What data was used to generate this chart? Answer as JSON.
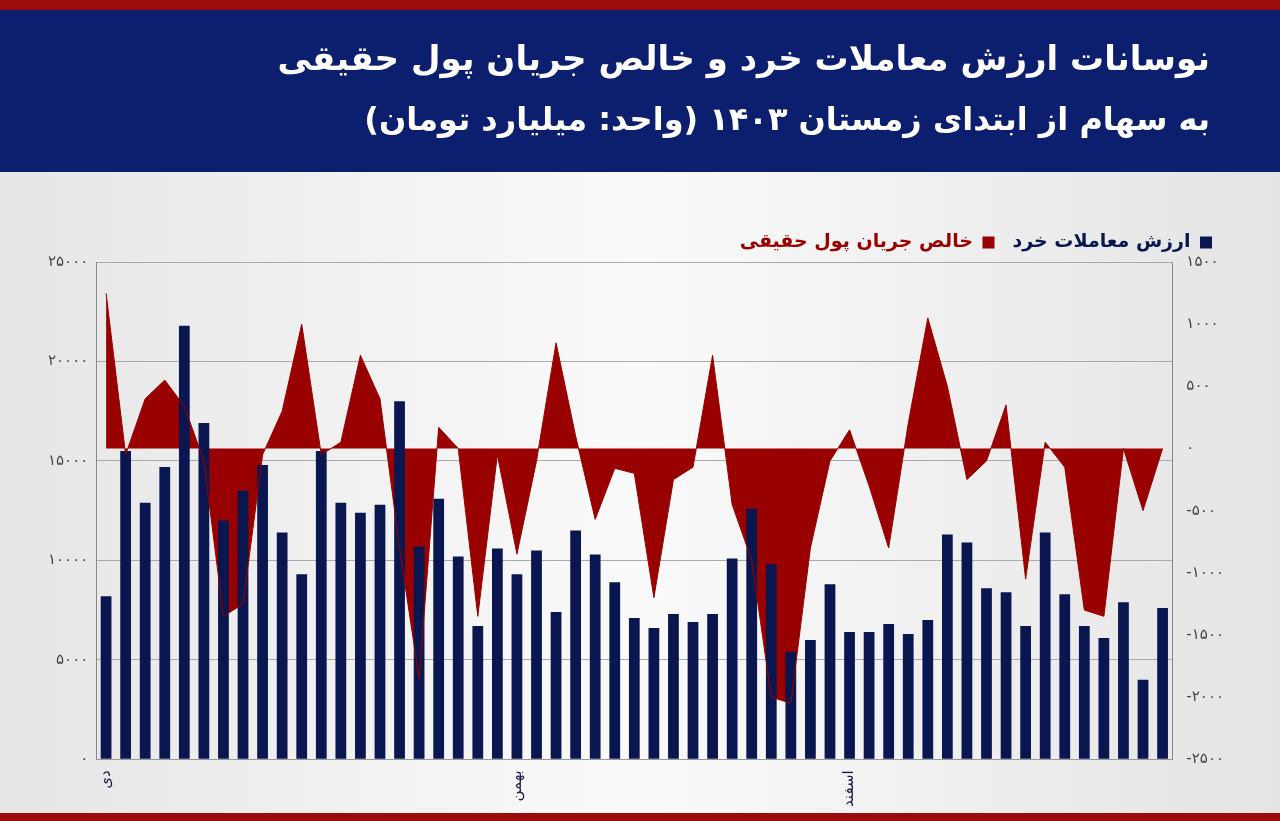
{
  "chart_data": {
    "type": "bar",
    "title": "نوسانات ارزش معاملات خرد و خالص جریان پول حقیقی",
    "subtitle": "به سهام از ابتدای زمستان ۱۴۰۳ (واحد: میلیارد تومان)",
    "categories": [
      "دی",
      null,
      null,
      null,
      null,
      null,
      null,
      null,
      null,
      null,
      null,
      null,
      null,
      null,
      null,
      null,
      null,
      null,
      null,
      null,
      null,
      "بهمن",
      null,
      null,
      null,
      null,
      null,
      null,
      null,
      null,
      null,
      null,
      null,
      null,
      null,
      null,
      null,
      null,
      "اسفند",
      null,
      null,
      null,
      null,
      null,
      null,
      null,
      null,
      null,
      null,
      null,
      null,
      null,
      null,
      null,
      null
    ],
    "series": [
      {
        "name": "ارزش معاملات خرد",
        "color": "#0a1650",
        "values": [
          8200,
          15500,
          12900,
          14700,
          21800,
          16900,
          12000,
          13500,
          14800,
          11400,
          9300,
          15500,
          12900,
          12400,
          12800,
          18000,
          10700,
          13100,
          10200,
          6700,
          10600,
          9300,
          10500,
          7400,
          11500,
          10300,
          8900,
          7100,
          6600,
          7300,
          6900,
          7300,
          10100,
          12600,
          9800,
          5400,
          6000,
          8800,
          6400,
          6400,
          6800,
          6300,
          7000,
          11300,
          10900,
          8600,
          8400,
          6700,
          11400,
          8300,
          6700,
          6100,
          7900,
          4000,
          7600
        ]
      },
      {
        "name": "خالص جریان پول حقیقی",
        "color": "#990000",
        "type": "area",
        "axis": "y2",
        "values": [
          1250,
          -50,
          400,
          550,
          340,
          -100,
          -1350,
          -1250,
          -50,
          300,
          1000,
          -50,
          50,
          750,
          400,
          -800,
          -1850,
          170,
          0,
          -1350,
          -50,
          -850,
          -100,
          850,
          100,
          -570,
          -160,
          -200,
          -1200,
          -250,
          -150,
          750,
          -450,
          -900,
          -2000,
          -2050,
          -800,
          -100,
          150,
          -300,
          -800,
          200,
          1050,
          500,
          -250,
          -100,
          350,
          -1050,
          50,
          -150,
          -1300,
          -1350,
          0,
          -500,
          0
        ]
      }
    ],
    "ylim": [
      0,
      25000
    ],
    "yticks": [
      {
        "value": 0,
        "label": "۰"
      },
      {
        "value": 5000,
        "label": "۵۰۰۰"
      },
      {
        "value": 10000,
        "label": "۱۰۰۰۰"
      },
      {
        "value": 15000,
        "label": "۱۵۰۰۰"
      },
      {
        "value": 20000,
        "label": "۲۰۰۰۰"
      },
      {
        "value": 25000,
        "label": "۲۵۰۰۰"
      }
    ],
    "y2lim": [
      -2500,
      1500
    ],
    "y2ticks": [
      {
        "value": -2500,
        "label": "-۲۵۰۰"
      },
      {
        "value": -2000,
        "label": "-۲۰۰۰"
      },
      {
        "value": -1500,
        "label": "-۱۵۰۰"
      },
      {
        "value": -1000,
        "label": "-۱۰۰۰"
      },
      {
        "value": -500,
        "label": "-۵۰۰"
      },
      {
        "value": 0,
        "label": "۰"
      },
      {
        "value": 500,
        "label": "۵۰۰"
      },
      {
        "value": 1000,
        "label": "۱۰۰۰"
      },
      {
        "value": 1500,
        "label": "۱۵۰۰"
      }
    ],
    "grid": "y",
    "legend": "top right"
  }
}
